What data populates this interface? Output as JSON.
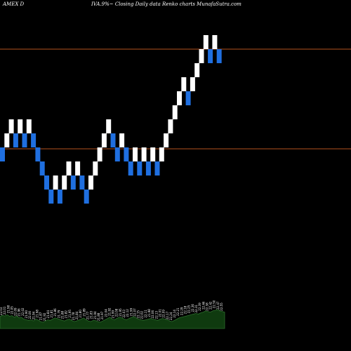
{
  "header": {
    "exchange_symbol": "AMEX  D",
    "description": "IVA.9%~ Closing Daily data  Renko  charts MunafaSutra.com"
  },
  "colors": {
    "background": "#000000",
    "up_brick": "#ffffff",
    "down_brick": "#1f6fe0",
    "level_line": "#b4521e",
    "volume_fill": "#0f3a0f",
    "volume_stroke": "#2c6e2c",
    "label_text": "#ffffff"
  },
  "chart_data": {
    "type": "renko",
    "bricks": [
      {
        "dir": "down",
        "level": 0
      },
      {
        "dir": "up",
        "level": 1
      },
      {
        "dir": "up",
        "level": 2
      },
      {
        "dir": "down",
        "level": 1
      },
      {
        "dir": "up",
        "level": 2
      },
      {
        "dir": "down",
        "level": 1
      },
      {
        "dir": "up",
        "level": 2
      },
      {
        "dir": "down",
        "level": 1
      },
      {
        "dir": "down",
        "level": 0
      },
      {
        "dir": "down",
        "level": -1
      },
      {
        "dir": "down",
        "level": -2
      },
      {
        "dir": "down",
        "level": -3
      },
      {
        "dir": "up",
        "level": -2
      },
      {
        "dir": "down",
        "level": -3
      },
      {
        "dir": "up",
        "level": -2
      },
      {
        "dir": "up",
        "level": -1
      },
      {
        "dir": "down",
        "level": -2
      },
      {
        "dir": "up",
        "level": -1
      },
      {
        "dir": "down",
        "level": -2
      },
      {
        "dir": "down",
        "level": -3
      },
      {
        "dir": "up",
        "level": -2
      },
      {
        "dir": "up",
        "level": -1
      },
      {
        "dir": "up",
        "level": 0
      },
      {
        "dir": "up",
        "level": 1
      },
      {
        "dir": "up",
        "level": 2
      },
      {
        "dir": "down",
        "level": 1
      },
      {
        "dir": "down",
        "level": 0
      },
      {
        "dir": "up",
        "level": 1
      },
      {
        "dir": "down",
        "level": 0
      },
      {
        "dir": "down",
        "level": -1
      },
      {
        "dir": "up",
        "level": 0
      },
      {
        "dir": "down",
        "level": -1
      },
      {
        "dir": "up",
        "level": 0
      },
      {
        "dir": "down",
        "level": -1
      },
      {
        "dir": "up",
        "level": 0
      },
      {
        "dir": "down",
        "level": -1
      },
      {
        "dir": "up",
        "level": 0
      },
      {
        "dir": "up",
        "level": 1
      },
      {
        "dir": "up",
        "level": 2
      },
      {
        "dir": "up",
        "level": 3
      },
      {
        "dir": "up",
        "level": 4
      },
      {
        "dir": "up",
        "level": 5
      },
      {
        "dir": "down",
        "level": 4
      },
      {
        "dir": "up",
        "level": 5
      },
      {
        "dir": "up",
        "level": 6
      },
      {
        "dir": "up",
        "level": 7
      },
      {
        "dir": "up",
        "level": 8
      },
      {
        "dir": "down",
        "level": 7
      },
      {
        "dir": "up",
        "level": 8
      },
      {
        "dir": "down",
        "level": 7
      }
    ],
    "level_lines": [
      {
        "level": 7.5
      },
      {
        "level": 0.4
      }
    ],
    "level_min": -4,
    "level_max": 10,
    "volume": [
      38,
      42,
      40,
      44,
      39,
      41,
      36,
      40,
      34,
      36,
      30,
      28,
      26,
      28,
      24,
      30,
      27,
      22,
      20,
      24,
      28,
      26,
      30,
      34,
      32,
      29,
      26,
      24,
      28,
      30,
      26,
      22,
      24,
      27,
      30,
      34,
      28,
      24,
      22,
      26,
      25,
      22,
      20,
      24,
      28,
      32,
      36,
      30,
      28,
      33,
      36,
      34,
      30,
      28,
      32,
      35,
      38,
      34,
      30,
      28,
      26,
      28,
      30,
      32,
      30,
      28,
      26,
      30,
      32,
      30,
      28,
      24,
      22,
      26,
      30,
      34,
      36,
      38,
      40,
      42,
      44,
      46,
      48,
      46,
      50,
      52,
      56,
      54,
      52,
      56,
      58,
      60,
      56,
      54,
      52
    ],
    "volume_max": 100,
    "volume_labels": [
      "22.03",
      "22.01",
      "21.98",
      "22.05",
      "22.09",
      "21.96",
      "22.02",
      "21.90",
      "22.00",
      "21.94",
      "21.98",
      "21.87",
      "21.92",
      "21.84",
      "21.81",
      "21.86",
      "21.79",
      "21.88",
      "21.82",
      "21.95",
      "21.78",
      "21.84",
      "21.80",
      "21.89",
      "21.77",
      "21.83",
      "21.94",
      "21.88",
      "21.97",
      "22.04",
      "21.92",
      "21.99",
      "22.08",
      "21.95",
      "22.03",
      "22.12",
      "21.99",
      "22.07",
      "22.15",
      "22.02",
      "22.11",
      "21.98",
      "22.06",
      "22.13",
      "22.01",
      "22.09",
      "22.17",
      "22.24",
      "22.14",
      "22.21",
      "22.29",
      "22.18",
      "22.25",
      "22.36",
      "22.31",
      "22.39",
      "22.46",
      "22.38",
      "22.42",
      "22.50",
      "22.47",
      "22.55"
    ]
  }
}
